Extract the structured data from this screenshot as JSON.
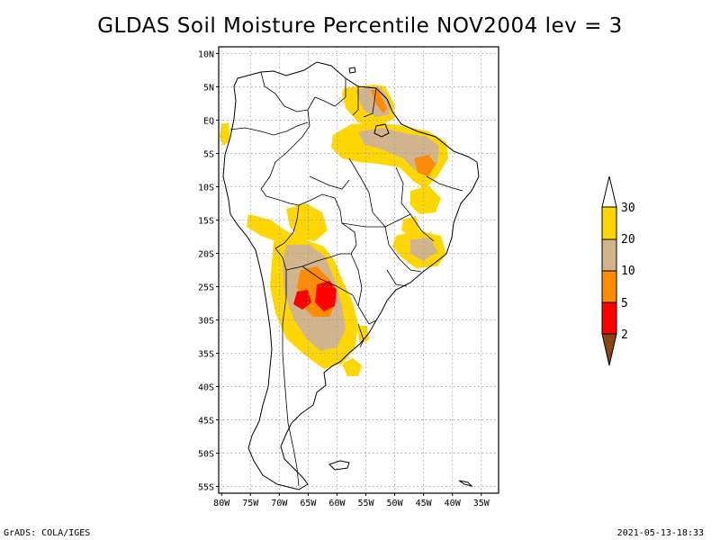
{
  "title": "GLDAS Soil Moisture Percentile NOV2004 lev = 3",
  "footer": {
    "credit": "GrADS: COLA/IGES",
    "timestamp": "2021-05-13-18:33"
  },
  "map": {
    "lat_labels": [
      "10N",
      "5N",
      "EQ",
      "5S",
      "10S",
      "15S",
      "20S",
      "25S",
      "30S",
      "35S",
      "40S",
      "45S",
      "50S",
      "55S"
    ],
    "lon_labels": [
      "80W",
      "75W",
      "70W",
      "65W",
      "60W",
      "55W",
      "50W",
      "45W",
      "40W",
      "35W"
    ],
    "lat_values": [
      10,
      5,
      0,
      -5,
      -10,
      -15,
      -20,
      -25,
      -30,
      -35,
      -40,
      -45,
      -50,
      -55
    ],
    "lon_values": [
      -80,
      -75,
      -70,
      -65,
      -60,
      -55,
      -50,
      -45,
      -40,
      -35
    ],
    "extent": {
      "lon_min": -80.5,
      "lon_max": -32,
      "lat_min": -56,
      "lat_max": 11
    }
  },
  "legend": {
    "labels": [
      "30",
      "20",
      "10",
      "5",
      "2"
    ],
    "classes": [
      {
        "range": ">30",
        "color": "#ffffff"
      },
      {
        "range": "20-30",
        "color": "#ffd700"
      },
      {
        "range": "10-20",
        "color": "#d2b48c"
      },
      {
        "range": "5-10",
        "color": "#ff8c00"
      },
      {
        "range": "2-5",
        "color": "#ff0000"
      },
      {
        "range": "<2",
        "color": "#8b4513"
      }
    ]
  },
  "colors": {
    "land_outline": "#000000",
    "grid": "#9a9a9a",
    "gold": "#ffd700",
    "tan": "#d2b48c",
    "orange": "#ff8c00",
    "red": "#ff0000",
    "brown": "#8b4513"
  }
}
